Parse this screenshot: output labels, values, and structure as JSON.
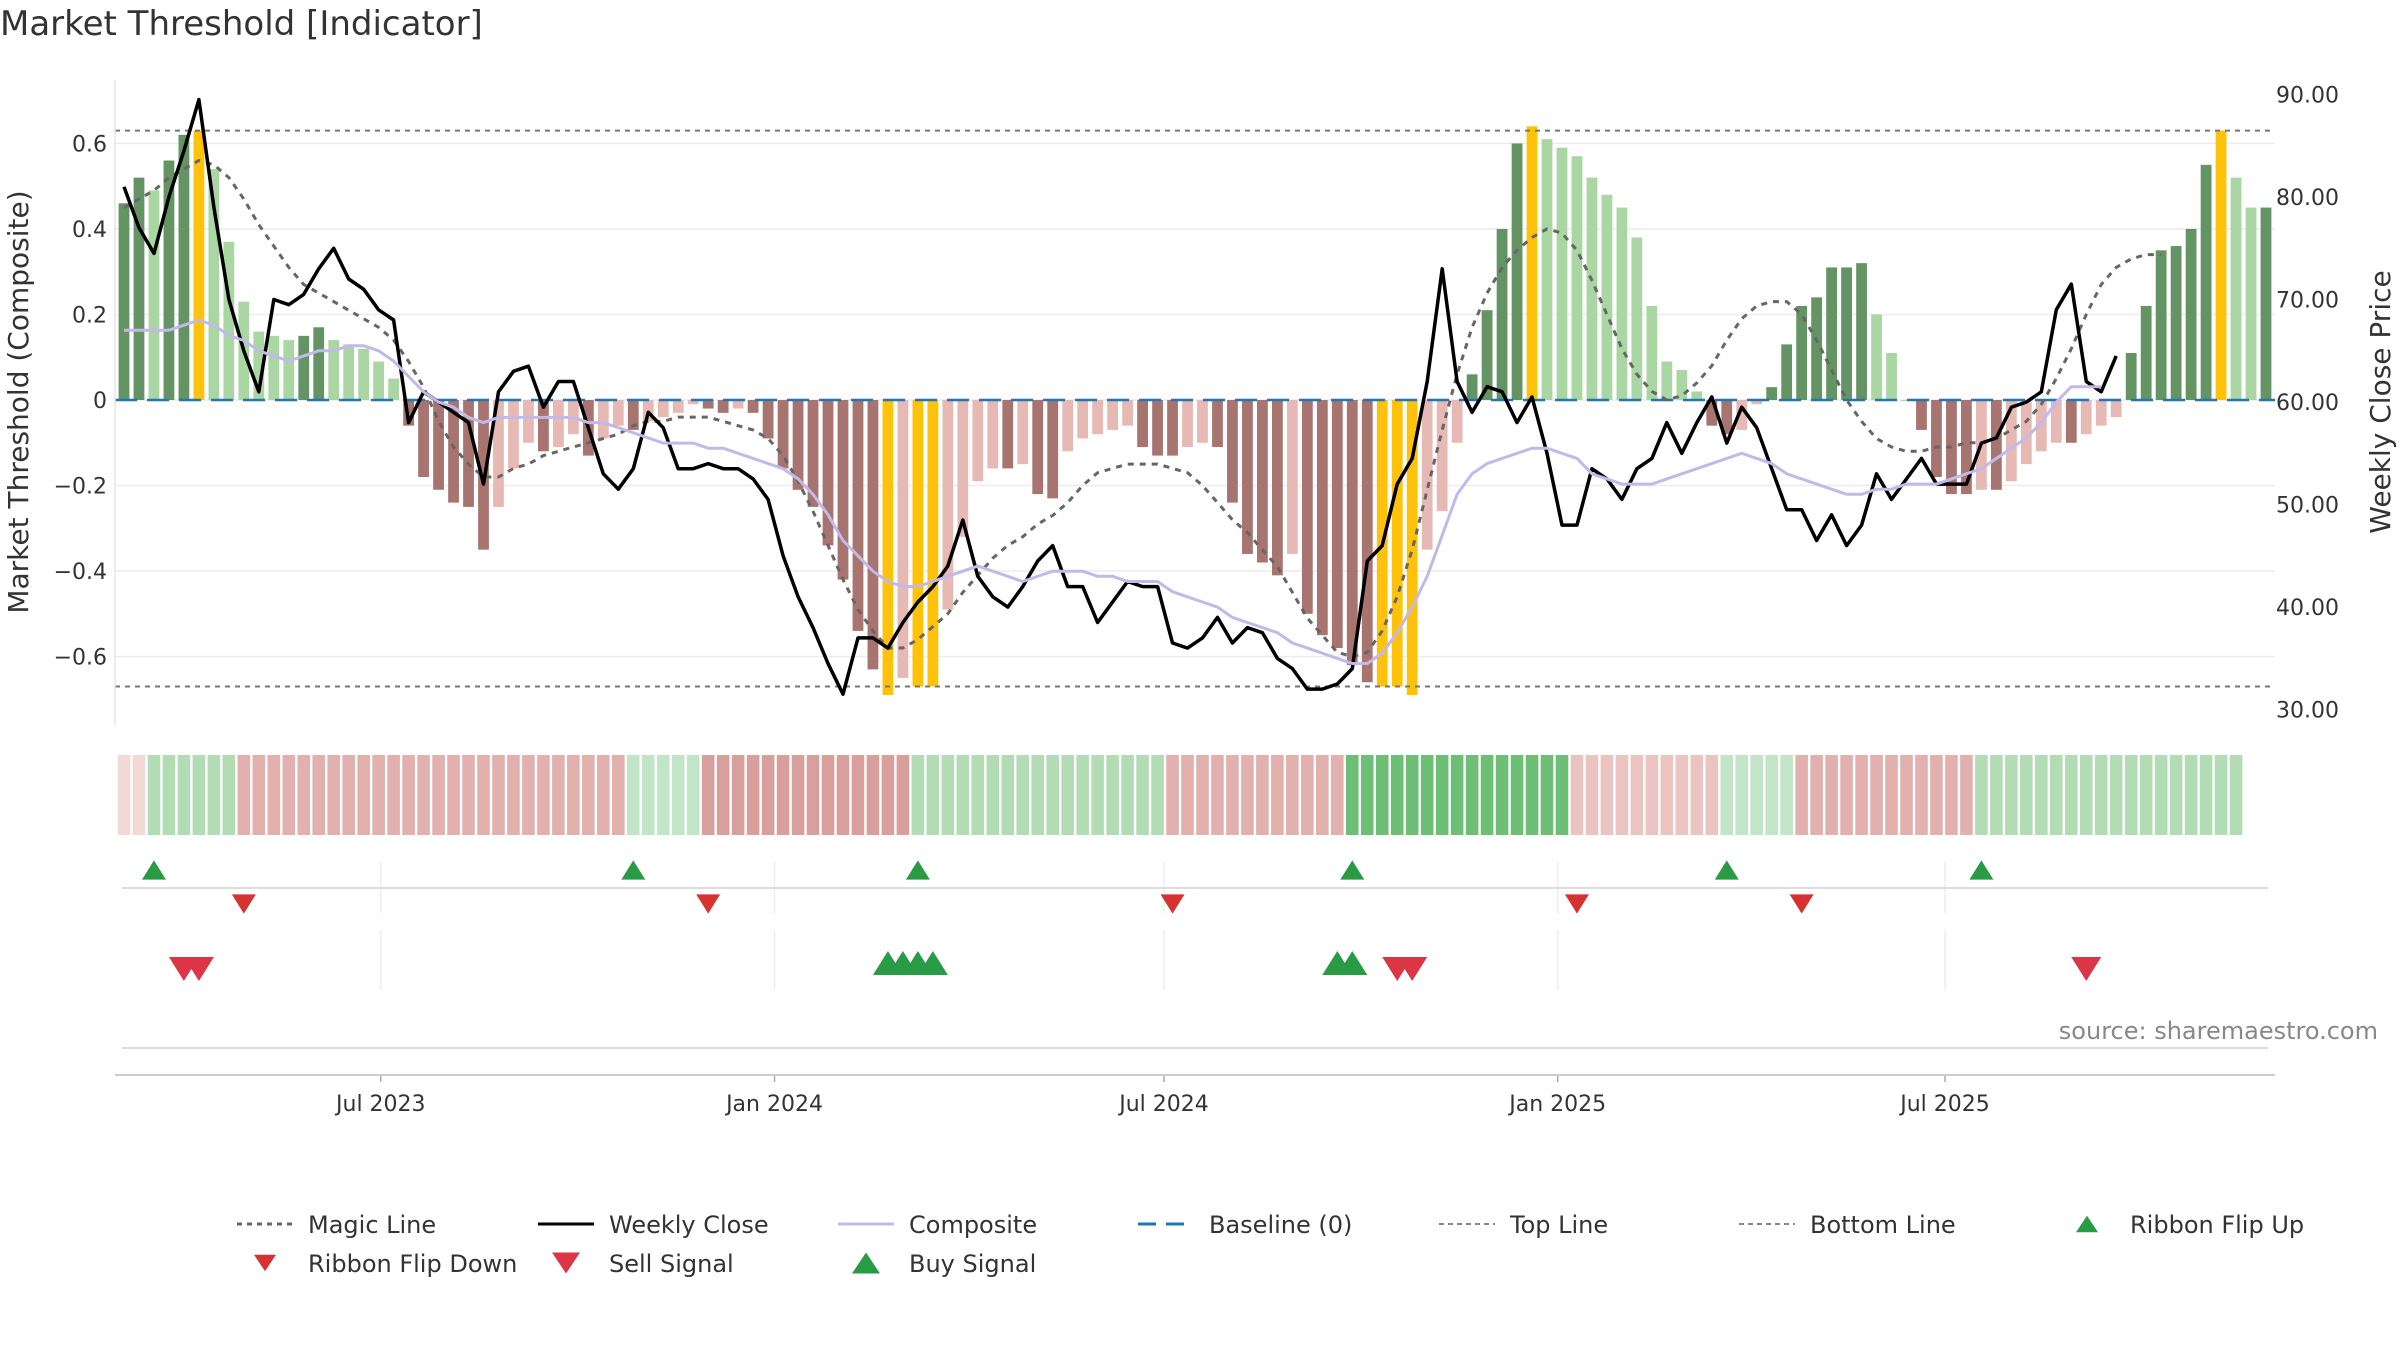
{
  "title": "Market Threshold [Indicator]",
  "source": "source: sharemaestro.com",
  "colors": {
    "strong_up": "#649463",
    "weak_up": "#a9d6a2",
    "strong_down": "#a8746f",
    "weak_down": "#e7b9b5",
    "extreme": "#ffc20a",
    "weekly_close": "#000000",
    "composite": "#c3b9e9",
    "magic": "#666666",
    "baseline": "#1f77b4",
    "flip_up": "#2a9b45",
    "flip_down": "#d63232",
    "buy": "#2a9b45",
    "sell": "#dc3545"
  },
  "chart_data": {
    "type": "bar",
    "x_start": "2023-03-03",
    "x_step_days": 7,
    "y_left": {
      "label": "Market Threshold (Composite)",
      "ticks": [
        0.6,
        0.4,
        0.2,
        0,
        -0.2,
        -0.4,
        -0.6
      ],
      "tick_labels": [
        "0.6",
        "0.4",
        "0.2",
        "0",
        "−0.2",
        "−0.4",
        "−0.6"
      ],
      "range": [
        -0.76,
        0.76
      ]
    },
    "y_right": {
      "label": "Weekly Close Price",
      "ticks": [
        90,
        80,
        70,
        60,
        50,
        40,
        30
      ],
      "tick_labels": [
        "90.00",
        "80.00",
        "70.00",
        "60.00",
        "50.00",
        "40.00",
        "30.00"
      ],
      "range": [
        28.5,
        91.9
      ]
    },
    "x_ticks": [
      {
        "date": "2023-07-01",
        "label": "Jul 2023"
      },
      {
        "date": "2024-01-01",
        "label": "Jan 2024"
      },
      {
        "date": "2024-07-01",
        "label": "Jul 2024"
      },
      {
        "date": "2025-01-01",
        "label": "Jan 2025"
      },
      {
        "date": "2025-07-01",
        "label": "Jul 2025"
      }
    ],
    "top_line": 0.63,
    "bottom_line": -0.67,
    "composite_values": [
      0.46,
      0.52,
      0.49,
      0.56,
      0.62,
      0.63,
      0.54,
      0.37,
      0.23,
      0.16,
      0.15,
      0.14,
      0.15,
      0.17,
      0.14,
      0.13,
      0.12,
      0.09,
      0.05,
      -0.06,
      -0.18,
      -0.21,
      -0.24,
      -0.25,
      -0.35,
      -0.25,
      -0.16,
      -0.1,
      -0.12,
      -0.11,
      -0.08,
      -0.13,
      -0.09,
      -0.06,
      -0.07,
      -0.05,
      -0.04,
      -0.03,
      -0.01,
      -0.02,
      -0.03,
      -0.02,
      -0.03,
      -0.09,
      -0.16,
      -0.21,
      -0.25,
      -0.34,
      -0.42,
      -0.54,
      -0.63,
      -0.69,
      -0.65,
      -0.67,
      -0.67,
      -0.49,
      -0.32,
      -0.19,
      -0.16,
      -0.16,
      -0.15,
      -0.22,
      -0.23,
      -0.12,
      -0.09,
      -0.08,
      -0.07,
      -0.06,
      -0.11,
      -0.13,
      -0.13,
      -0.11,
      -0.1,
      -0.11,
      -0.24,
      -0.36,
      -0.38,
      -0.41,
      -0.36,
      -0.5,
      -0.55,
      -0.58,
      -0.62,
      -0.66,
      -0.67,
      -0.67,
      -0.69,
      -0.35,
      -0.26,
      -0.1,
      0.06,
      0.21,
      0.4,
      0.6,
      0.64,
      0.61,
      0.59,
      0.57,
      0.52,
      0.48,
      0.45,
      0.38,
      0.22,
      0.09,
      0.07,
      0.02,
      -0.06,
      -0.08,
      -0.07,
      -0.01,
      0.03,
      0.13,
      0.22,
      0.24,
      0.31,
      0.31,
      0.32,
      0.2,
      0.11,
      0.0,
      -0.07,
      -0.18,
      -0.22,
      -0.22,
      -0.21,
      -0.21,
      -0.19,
      -0.15,
      -0.12,
      -0.1,
      -0.1,
      -0.08,
      -0.06,
      -0.04,
      0.11,
      0.22,
      0.35,
      0.36,
      0.4,
      0.55,
      0.63,
      0.52,
      0.45,
      0.45
    ],
    "ribbon_flip_up_x": [
      "2023-03-17",
      "2023-10-27",
      "2024-03-08",
      "2024-09-27",
      "2025-03-21",
      "2025-07-18"
    ],
    "ribbon_flip_down_x": [
      "2023-04-28",
      "2023-12-01",
      "2024-07-05",
      "2025-01-10",
      "2025-04-25"
    ],
    "buy_signal_x": [
      "2024-02-23",
      "2024-03-01",
      "2024-03-08",
      "2024-03-15",
      "2024-09-20",
      "2024-09-27"
    ],
    "sell_signal_x": [
      "2023-03-31",
      "2023-04-07",
      "2024-10-18",
      "2024-10-25",
      "2025-09-05"
    ],
    "series": [
      {
        "name": "Magic Line",
        "style": "dotted",
        "color": "#666666",
        "values": [
          0.45,
          0.47,
          0.49,
          0.52,
          0.54,
          0.56,
          0.55,
          0.52,
          0.47,
          0.41,
          0.36,
          0.31,
          0.27,
          0.25,
          0.23,
          0.21,
          0.19,
          0.17,
          0.14,
          0.09,
          0.03,
          -0.05,
          -0.11,
          -0.15,
          -0.18,
          -0.18,
          -0.16,
          -0.15,
          -0.13,
          -0.12,
          -0.11,
          -0.1,
          -0.09,
          -0.08,
          -0.06,
          -0.05,
          -0.05,
          -0.04,
          -0.04,
          -0.04,
          -0.05,
          -0.06,
          -0.07,
          -0.09,
          -0.13,
          -0.19,
          -0.26,
          -0.34,
          -0.42,
          -0.49,
          -0.54,
          -0.58,
          -0.58,
          -0.56,
          -0.53,
          -0.5,
          -0.45,
          -0.41,
          -0.37,
          -0.34,
          -0.32,
          -0.29,
          -0.27,
          -0.24,
          -0.2,
          -0.17,
          -0.16,
          -0.15,
          -0.15,
          -0.15,
          -0.16,
          -0.17,
          -0.2,
          -0.24,
          -0.28,
          -0.31,
          -0.35,
          -0.39,
          -0.45,
          -0.51,
          -0.55,
          -0.59,
          -0.6,
          -0.59,
          -0.54,
          -0.46,
          -0.35,
          -0.21,
          -0.07,
          0.06,
          0.17,
          0.25,
          0.31,
          0.35,
          0.38,
          0.4,
          0.39,
          0.35,
          0.28,
          0.2,
          0.12,
          0.06,
          0.02,
          0.0,
          0.01,
          0.04,
          0.08,
          0.14,
          0.19,
          0.22,
          0.23,
          0.23,
          0.2,
          0.14,
          0.07,
          0.0,
          -0.05,
          -0.09,
          -0.11,
          -0.12,
          -0.12,
          -0.11,
          -0.11,
          -0.1,
          -0.1,
          -0.09,
          -0.07,
          -0.05,
          -0.01,
          0.05,
          0.12,
          0.2,
          0.27,
          0.31,
          0.33,
          0.34,
          0.34
        ]
      },
      {
        "name": "Weekly Close",
        "style": "solid",
        "color": "#000000",
        "values": [
          81,
          77,
          74.5,
          80,
          84.5,
          89.5,
          79,
          70,
          65,
          61,
          70,
          69.5,
          70.5,
          73,
          75,
          72,
          71,
          69,
          68,
          58,
          61,
          60,
          59,
          58,
          52,
          61,
          63,
          63.5,
          59.5,
          62,
          62,
          57.5,
          53,
          51.5,
          53.5,
          59,
          57.5,
          53.5,
          53.5,
          54,
          53.5,
          53.5,
          52.5,
          50.5,
          45,
          41,
          38,
          34.5,
          31.5,
          37,
          37,
          36,
          38.5,
          40.5,
          42,
          44,
          48.5,
          43,
          41,
          40,
          42,
          44.5,
          46,
          42,
          42,
          38.5,
          40.5,
          42.5,
          42,
          42,
          36.5,
          36,
          37,
          39,
          36.5,
          38,
          37.5,
          35,
          34,
          32,
          32,
          32.5,
          34,
          44.5,
          46,
          52,
          54.5,
          62,
          73,
          62,
          59,
          61.5,
          61,
          58,
          60.5,
          55,
          48,
          48,
          53.5,
          52.5,
          50.5,
          53.5,
          54.5,
          58,
          55,
          58,
          60.5,
          56,
          59.5,
          57.5,
          53.5,
          49.5,
          49.5,
          46.5,
          49,
          46,
          48,
          53,
          50.5,
          52.5,
          54.5,
          52,
          52,
          52,
          56,
          56.5,
          59.5,
          60,
          61,
          69,
          71.5,
          62,
          61,
          64.5
        ]
      },
      {
        "name": "Composite",
        "style": "solid",
        "color": "#c3b9e9",
        "values": [
          67,
          67,
          67,
          67,
          67.5,
          68,
          67.5,
          66.5,
          66,
          65,
          64.5,
          64,
          64.5,
          65,
          65,
          65.5,
          65.5,
          65,
          64,
          62.5,
          61,
          60,
          59.5,
          58.5,
          58,
          58.5,
          58.5,
          58.5,
          58.5,
          58.5,
          58.5,
          58,
          58,
          57.5,
          57,
          56.5,
          56,
          56,
          56,
          55.5,
          55.5,
          55,
          54.5,
          54,
          53.5,
          52.5,
          51,
          49,
          46.5,
          45,
          43.5,
          42.5,
          42,
          42,
          42.5,
          43,
          43.5,
          44,
          43.5,
          43,
          42.5,
          43,
          43.5,
          43.5,
          43.5,
          43,
          43,
          42.5,
          42.5,
          42.5,
          41.5,
          41,
          40.5,
          40,
          39,
          38.5,
          38,
          37.5,
          36.5,
          36,
          35.5,
          35,
          34.5,
          34.5,
          35.5,
          37.5,
          40,
          43,
          47,
          51,
          53,
          54,
          54.5,
          55,
          55.5,
          55.5,
          55,
          54.5,
          53,
          52.5,
          52,
          52,
          52,
          52.5,
          53,
          53.5,
          54,
          54.5,
          55,
          54.5,
          54,
          53,
          52.5,
          52,
          51.5,
          51,
          51,
          51.5,
          51.5,
          52,
          52,
          52,
          52.5,
          53,
          53.5,
          54.5,
          55.5,
          56.5,
          58,
          60,
          61.5,
          61.5,
          61.5
        ]
      }
    ],
    "ribbon": [
      {
        "from": "2023-03-03",
        "to": "2023-03-10",
        "state": "very weak down"
      },
      {
        "from": "2023-03-17",
        "to": "2023-04-21",
        "state": "moderate up"
      },
      {
        "from": "2023-04-28",
        "to": "2023-10-20",
        "state": "moderate down"
      },
      {
        "from": "2023-10-27",
        "to": "2023-11-24",
        "state": "weak up"
      },
      {
        "from": "2023-12-01",
        "to": "2024-03-01",
        "state": "strong down"
      },
      {
        "from": "2024-03-08",
        "to": "2024-06-28",
        "state": "moderate up"
      },
      {
        "from": "2024-07-05",
        "to": "2024-09-20",
        "state": "moderate down"
      },
      {
        "from": "2024-09-27",
        "to": "2025-01-03",
        "state": "strong up"
      },
      {
        "from": "2025-01-10",
        "to": "2025-03-14",
        "state": "weak down"
      },
      {
        "from": "2025-03-21",
        "to": "2025-04-18",
        "state": "weak up"
      },
      {
        "from": "2025-04-25",
        "to": "2025-07-11",
        "state": "moderate down"
      },
      {
        "from": "2025-07-18",
        "to": "2025-11-14",
        "state": "moderate up"
      }
    ]
  },
  "legend": {
    "items": [
      {
        "label": "Magic Line",
        "icon": "dotted-line"
      },
      {
        "label": "Weekly Close",
        "icon": "solid-line"
      },
      {
        "label": "Composite",
        "icon": "solid-line"
      },
      {
        "label": "Baseline (0)",
        "icon": "dashed-line"
      },
      {
        "label": "Top Line",
        "icon": "dotted-line"
      },
      {
        "label": "Bottom Line",
        "icon": "dotted-line"
      },
      {
        "label": "Ribbon Flip Up",
        "icon": "triangle-up"
      },
      {
        "label": "Ribbon Flip Down",
        "icon": "triangle-down"
      },
      {
        "label": "Sell Signal",
        "icon": "triangle-down"
      },
      {
        "label": "Buy Signal",
        "icon": "triangle-up"
      }
    ]
  }
}
